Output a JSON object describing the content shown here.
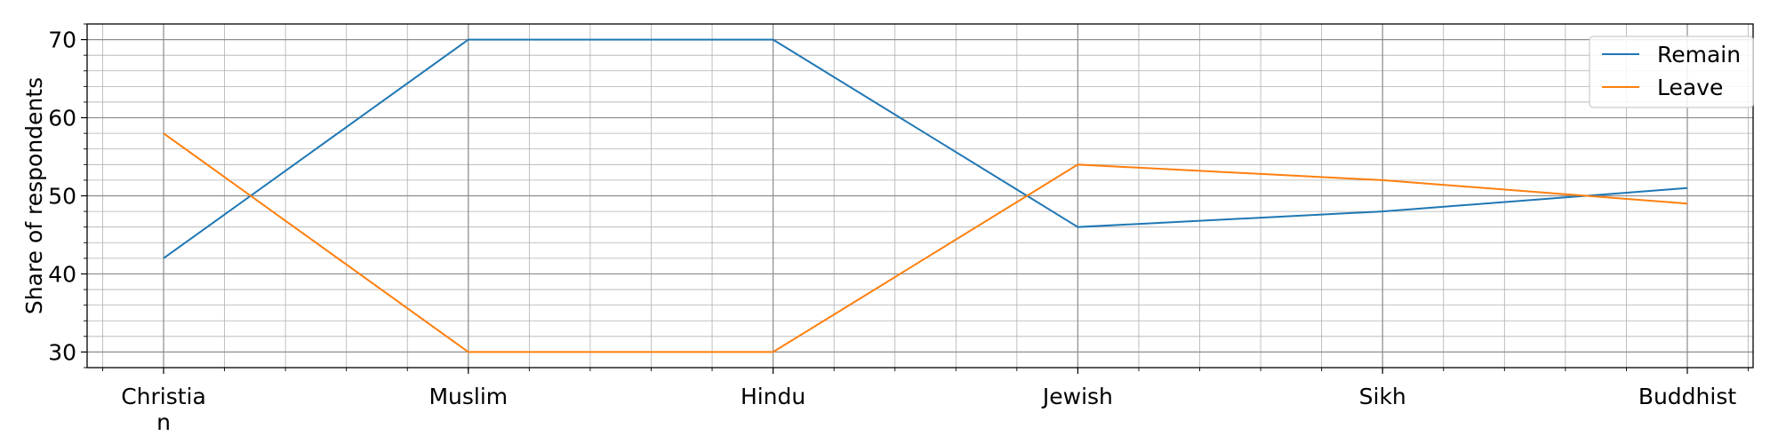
{
  "chart_data": {
    "type": "line",
    "categories": [
      "Christia\nn",
      "Muslim",
      "Hindu",
      "Jewish",
      "Sikh",
      "Buddhist"
    ],
    "series": [
      {
        "name": "Remain",
        "values": [
          42,
          70,
          70,
          46,
          48,
          51
        ],
        "color": "#1f77b4"
      },
      {
        "name": "Leave",
        "values": [
          58,
          30,
          30,
          54,
          52,
          49
        ],
        "color": "#ff7f0e"
      }
    ],
    "title": "",
    "xlabel": "",
    "ylabel": "Share of respondents",
    "ylim": [
      28,
      72
    ],
    "yticks": [
      30,
      40,
      50,
      60,
      70
    ],
    "grid": true,
    "minor_grid": true,
    "legend_position": "top-right"
  }
}
